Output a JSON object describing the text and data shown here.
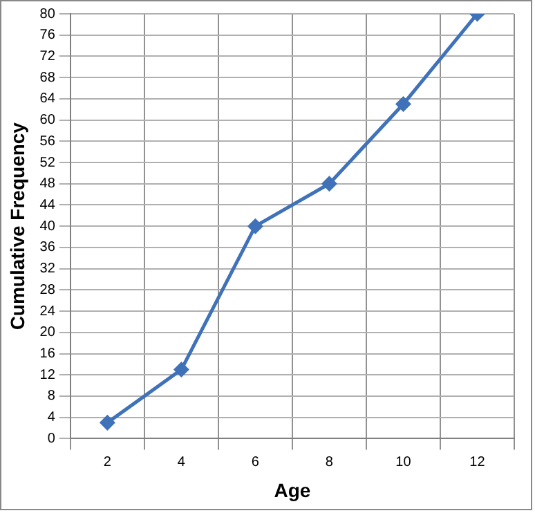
{
  "chart_data": {
    "type": "line",
    "xlabel": "Age",
    "ylabel": "Cumulative Frequency",
    "categories": [
      "2",
      "4",
      "6",
      "8",
      "10",
      "12"
    ],
    "series": [
      {
        "color": "#3f72b8",
        "values": [
          3,
          13,
          40,
          48,
          63,
          80
        ]
      }
    ],
    "ylim": [
      0,
      80
    ],
    "yticks": [
      0,
      4,
      8,
      12,
      16,
      20,
      24,
      28,
      32,
      36,
      40,
      44,
      48,
      52,
      56,
      60,
      64,
      68,
      72,
      76,
      80
    ],
    "grid": true,
    "legend": false,
    "marker": "diamond",
    "line_style": "solid"
  }
}
